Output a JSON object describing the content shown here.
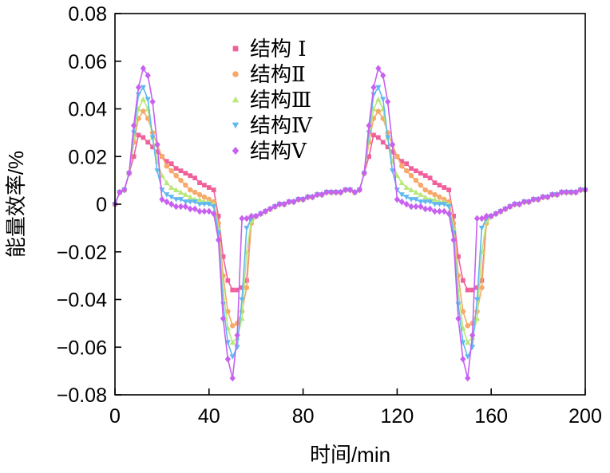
{
  "chart_data": {
    "type": "line",
    "xlabel": "时间/min",
    "ylabel": "能量效率/%",
    "xlim": [
      0,
      200
    ],
    "ylim": [
      -0.08,
      0.08
    ],
    "xticks": [
      0,
      40,
      80,
      120,
      160,
      200
    ],
    "xtick_labels": [
      "0",
      "40",
      "80",
      "120",
      "160",
      "200"
    ],
    "yticks": [
      0.08,
      0.06,
      0.04,
      0.02,
      0,
      -0.02,
      -0.04,
      -0.06,
      -0.08
    ],
    "ytick_labels": [
      "0.08",
      "0.06",
      "0.04",
      "0.02",
      "0",
      "−0.02",
      "−0.04",
      "−0.06",
      "−0.08"
    ],
    "grid": false,
    "legend_position": "upper-center",
    "x": [
      0,
      2,
      4,
      6,
      8,
      10,
      12,
      14,
      16,
      18,
      20,
      22,
      24,
      26,
      28,
      30,
      32,
      34,
      36,
      38,
      40,
      42,
      44,
      46,
      48,
      50,
      52,
      54,
      56,
      58,
      60,
      62,
      64,
      66,
      68,
      70,
      72,
      74,
      76,
      78,
      80,
      82,
      84,
      86,
      88,
      90,
      92,
      94,
      96,
      98,
      100,
      102,
      104,
      106,
      108,
      110,
      112,
      114,
      116,
      118,
      120,
      122,
      124,
      126,
      128,
      130,
      132,
      134,
      136,
      138,
      140,
      142,
      144,
      146,
      148,
      150,
      152,
      154,
      156,
      158,
      160,
      162,
      164,
      166,
      168,
      170,
      172,
      174,
      176,
      178,
      180,
      182,
      184,
      186,
      188,
      190,
      192,
      194,
      196,
      198,
      200
    ],
    "series": [
      {
        "name": "结构 Ⅰ",
        "color": "#f0609a",
        "marker": "square",
        "values": [
          0,
          0.005,
          0.006,
          0.013,
          0.02,
          0.029,
          0.028,
          0.026,
          0.024,
          0.022,
          0.02,
          0.018,
          0.017,
          0.015,
          0.014,
          0.013,
          0.012,
          0.011,
          0.009,
          0.008,
          0.007,
          0.006,
          -0.005,
          -0.022,
          -0.032,
          -0.036,
          -0.036,
          -0.035,
          -0.032,
          -0.006,
          -0.005,
          -0.004,
          -0.003,
          -0.002,
          -0.001,
          0,
          0,
          0.001,
          0.001,
          0.002,
          0.002,
          0.003,
          0.003,
          0.004,
          0.004,
          0.005,
          0.005,
          0.005,
          0.005,
          0.006,
          0.006,
          0.005,
          0.006,
          0.013,
          0.02,
          0.029,
          0.028,
          0.026,
          0.024,
          0.022,
          0.02,
          0.018,
          0.017,
          0.015,
          0.014,
          0.013,
          0.012,
          0.011,
          0.009,
          0.008,
          0.007,
          0.006,
          -0.005,
          -0.022,
          -0.032,
          -0.036,
          -0.036,
          -0.035,
          -0.032,
          -0.006,
          -0.005,
          -0.004,
          -0.003,
          -0.002,
          -0.001,
          0,
          0,
          0.001,
          0.001,
          0.002,
          0.002,
          0.003,
          0.003,
          0.004,
          0.004,
          0.005,
          0.005,
          0.005,
          0.005,
          0.006,
          0.006
        ]
      },
      {
        "name": "结构Ⅱ",
        "color": "#f8a868",
        "marker": "circle",
        "values": [
          0,
          0.005,
          0.006,
          0.013,
          0.026,
          0.036,
          0.039,
          0.036,
          0.03,
          0.025,
          0.02,
          0.016,
          0.014,
          0.012,
          0.01,
          0.008,
          0.006,
          0.005,
          0.004,
          0.003,
          0.002,
          0.001,
          -0.008,
          -0.03,
          -0.045,
          -0.051,
          -0.05,
          -0.045,
          -0.035,
          -0.008,
          -0.005,
          -0.004,
          -0.003,
          -0.002,
          -0.001,
          0,
          0,
          0.001,
          0.001,
          0.002,
          0.002,
          0.003,
          0.003,
          0.004,
          0.004,
          0.005,
          0.005,
          0.005,
          0.005,
          0.006,
          0.006,
          0.005,
          0.006,
          0.013,
          0.026,
          0.036,
          0.039,
          0.036,
          0.03,
          0.025,
          0.02,
          0.016,
          0.014,
          0.012,
          0.01,
          0.008,
          0.006,
          0.005,
          0.004,
          0.003,
          0.002,
          0.001,
          -0.008,
          -0.03,
          -0.045,
          -0.051,
          -0.05,
          -0.045,
          -0.035,
          -0.008,
          -0.005,
          -0.004,
          -0.003,
          -0.002,
          -0.001,
          0,
          0,
          0.001,
          0.001,
          0.002,
          0.002,
          0.003,
          0.003,
          0.004,
          0.004,
          0.005,
          0.005,
          0.005,
          0.005,
          0.006,
          0.006
        ]
      },
      {
        "name": "结构Ⅲ",
        "color": "#b8e878",
        "marker": "triangle-up",
        "values": [
          0,
          0.005,
          0.006,
          0.013,
          0.028,
          0.04,
          0.044,
          0.04,
          0.028,
          0.018,
          0.012,
          0.009,
          0.007,
          0.006,
          0.005,
          0.004,
          0.003,
          0.002,
          0.002,
          0.001,
          0.001,
          0,
          -0.01,
          -0.036,
          -0.052,
          -0.058,
          -0.056,
          -0.048,
          -0.02,
          -0.007,
          -0.005,
          -0.004,
          -0.003,
          -0.002,
          -0.001,
          0,
          0,
          0.001,
          0.001,
          0.002,
          0.002,
          0.003,
          0.003,
          0.004,
          0.004,
          0.005,
          0.005,
          0.005,
          0.005,
          0.006,
          0.006,
          0.005,
          0.006,
          0.013,
          0.028,
          0.04,
          0.044,
          0.04,
          0.028,
          0.018,
          0.012,
          0.009,
          0.007,
          0.006,
          0.005,
          0.004,
          0.003,
          0.002,
          0.002,
          0.001,
          0.001,
          0,
          -0.01,
          -0.036,
          -0.052,
          -0.058,
          -0.056,
          -0.048,
          -0.02,
          -0.007,
          -0.005,
          -0.004,
          -0.003,
          -0.002,
          -0.001,
          0,
          0,
          0.001,
          0.001,
          0.002,
          0.002,
          0.003,
          0.003,
          0.004,
          0.004,
          0.005,
          0.005,
          0.005,
          0.005,
          0.006,
          0.006
        ]
      },
      {
        "name": "结构Ⅳ",
        "color": "#60b8f0",
        "marker": "triangle-down",
        "values": [
          0,
          0.005,
          0.006,
          0.013,
          0.03,
          0.046,
          0.049,
          0.044,
          0.028,
          0.014,
          0.006,
          0.004,
          0.003,
          0.002,
          0.002,
          0.001,
          0.001,
          0.001,
          0,
          0,
          0,
          -0.001,
          -0.012,
          -0.042,
          -0.058,
          -0.064,
          -0.06,
          -0.04,
          -0.01,
          -0.006,
          -0.005,
          -0.004,
          -0.003,
          -0.002,
          -0.001,
          0,
          0,
          0.001,
          0.001,
          0.002,
          0.002,
          0.003,
          0.003,
          0.004,
          0.004,
          0.005,
          0.005,
          0.005,
          0.005,
          0.006,
          0.006,
          0.005,
          0.006,
          0.013,
          0.03,
          0.046,
          0.049,
          0.044,
          0.028,
          0.014,
          0.006,
          0.004,
          0.003,
          0.002,
          0.002,
          0.001,
          0.001,
          0.001,
          0,
          0,
          0,
          -0.001,
          -0.012,
          -0.042,
          -0.058,
          -0.064,
          -0.06,
          -0.04,
          -0.01,
          -0.006,
          -0.005,
          -0.004,
          -0.003,
          -0.002,
          -0.001,
          0,
          0,
          0.001,
          0.001,
          0.002,
          0.002,
          0.003,
          0.003,
          0.004,
          0.004,
          0.005,
          0.005,
          0.005,
          0.005,
          0.006,
          0.006
        ]
      },
      {
        "name": "结构Ⅴ",
        "color": "#c860f0",
        "marker": "diamond",
        "values": [
          0,
          0.005,
          0.006,
          0.013,
          0.033,
          0.049,
          0.057,
          0.054,
          0.043,
          0.025,
          0.002,
          0.001,
          0,
          -0.001,
          -0.001,
          -0.001,
          -0.002,
          -0.002,
          -0.003,
          -0.003,
          -0.003,
          -0.004,
          -0.015,
          -0.048,
          -0.065,
          -0.073,
          -0.055,
          -0.006,
          -0.006,
          -0.005,
          -0.005,
          -0.004,
          -0.003,
          -0.002,
          -0.001,
          0,
          0,
          0.001,
          0.001,
          0.002,
          0.002,
          0.003,
          0.003,
          0.004,
          0.004,
          0.005,
          0.005,
          0.005,
          0.005,
          0.006,
          0.006,
          0.005,
          0.006,
          0.013,
          0.033,
          0.049,
          0.057,
          0.054,
          0.043,
          0.025,
          0.002,
          0.001,
          0,
          -0.001,
          -0.001,
          -0.001,
          -0.002,
          -0.002,
          -0.003,
          -0.003,
          -0.003,
          -0.004,
          -0.015,
          -0.048,
          -0.065,
          -0.073,
          -0.055,
          -0.006,
          -0.006,
          -0.005,
          -0.005,
          -0.004,
          -0.003,
          -0.002,
          -0.001,
          0,
          0,
          0.001,
          0.001,
          0.002,
          0.002,
          0.003,
          0.003,
          0.004,
          0.004,
          0.005,
          0.005,
          0.005,
          0.005,
          0.006,
          0.006
        ]
      }
    ]
  }
}
